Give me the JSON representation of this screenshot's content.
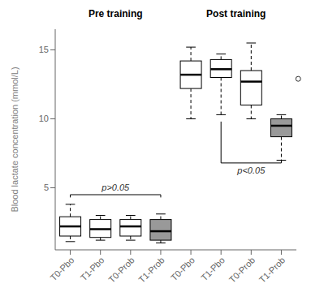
{
  "chart_data": {
    "type": "box",
    "ylabel": "Blood lactate concentration (mmol/L)",
    "ylim": [
      0.5,
      16.5
    ],
    "yticks": [
      5,
      10,
      15
    ],
    "grid": false,
    "categories": [
      "T0-Pbo",
      "T1-Pbo",
      "T0-Prob",
      "T1-Prob",
      "T0-Pbo",
      "T1-Pbo",
      "T0-Prob",
      "T1-Prob"
    ],
    "boxes": [
      {
        "q1": 1.5,
        "median": 2.2,
        "q3": 2.9,
        "whislo": 1.1,
        "whishi": 3.8,
        "fliers": [],
        "color": "white"
      },
      {
        "q1": 1.4,
        "median": 2.0,
        "q3": 2.7,
        "whislo": 1.2,
        "whishi": 3.0,
        "fliers": [],
        "color": "white"
      },
      {
        "q1": 1.5,
        "median": 2.2,
        "q3": 2.7,
        "whislo": 1.2,
        "whishi": 3.0,
        "fliers": [],
        "color": "white"
      },
      {
        "q1": 1.2,
        "median": 1.85,
        "q3": 2.7,
        "whislo": 1.0,
        "whishi": 3.1,
        "fliers": [],
        "color": "#999999"
      },
      {
        "q1": 12.2,
        "median": 13.2,
        "q3": 14.2,
        "whislo": 10.0,
        "whishi": 15.2,
        "fliers": [],
        "color": "white"
      },
      {
        "q1": 13.0,
        "median": 13.6,
        "q3": 14.3,
        "whislo": 10.3,
        "whishi": 14.7,
        "fliers": [],
        "color": "white"
      },
      {
        "q1": 11.0,
        "median": 12.7,
        "q3": 13.5,
        "whislo": 10.0,
        "whishi": 15.5,
        "fliers": [],
        "color": "white"
      },
      {
        "q1": 8.7,
        "median": 9.5,
        "q3": 10.0,
        "whislo": 7.0,
        "whishi": 10.3,
        "fliers": [
          12.9
        ],
        "color": "#999999"
      }
    ],
    "groups": [
      {
        "title": "Pre training",
        "from": 0,
        "to": 3
      },
      {
        "title": "Post training",
        "from": 4,
        "to": 7
      }
    ],
    "annotations": [
      {
        "text": "p>0.05",
        "x": [
          0,
          3
        ],
        "y": 4.5
      },
      {
        "text": "p<0.05",
        "x": [
          5,
          7
        ],
        "y_top": 9.8,
        "y_bottom": 6.8
      }
    ]
  }
}
